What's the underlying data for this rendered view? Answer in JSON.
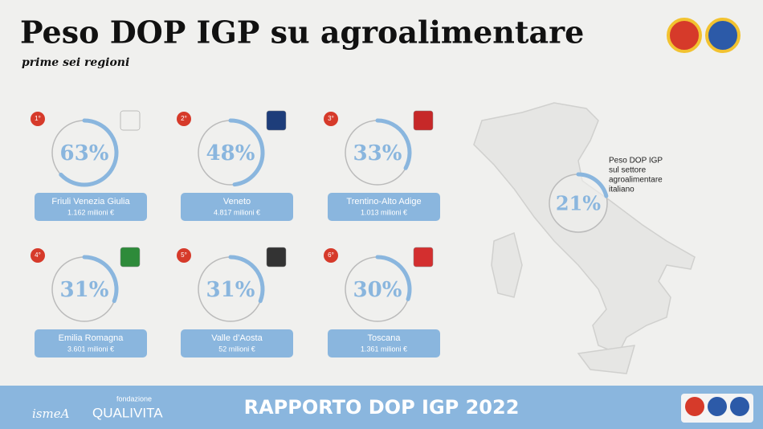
{
  "header": {
    "title": "Peso DOP IGP su agroalimentare",
    "subtitle": "prime sei regioni"
  },
  "regions": [
    {
      "rank": "1°",
      "name": "Friuli Venezia Giulia",
      "amount": "1.162 milioni €",
      "value": 63,
      "value_label": "63%"
    },
    {
      "rank": "2°",
      "name": "Veneto",
      "amount": "4.817 milioni €",
      "value": 48,
      "value_label": "48%"
    },
    {
      "rank": "3°",
      "name": "Trentino-Alto Adige",
      "amount": "1.013 milioni €",
      "value": 33,
      "value_label": "33%"
    },
    {
      "rank": "4°",
      "name": "Emilia Romagna",
      "amount": "3.601 milioni €",
      "value": 31,
      "value_label": "31%"
    },
    {
      "rank": "5°",
      "name": "Valle d’Aosta",
      "amount": "52 milioni €",
      "value": 31,
      "value_label": "31%"
    },
    {
      "rank": "6°",
      "name": "Toscana",
      "amount": "1.361 milioni €",
      "value": 30,
      "value_label": "30%"
    }
  ],
  "italy": {
    "value": 21,
    "value_label": "21%",
    "caption": [
      "Peso DOP IGP",
      "sul settore",
      "agroalimentare",
      "italiano"
    ]
  },
  "footer": {
    "title": "RAPPORTO DOP IGP 2022",
    "logo1": "ismeA",
    "logo2_top": "fondazione",
    "logo2": "QUALIVITA"
  }
}
